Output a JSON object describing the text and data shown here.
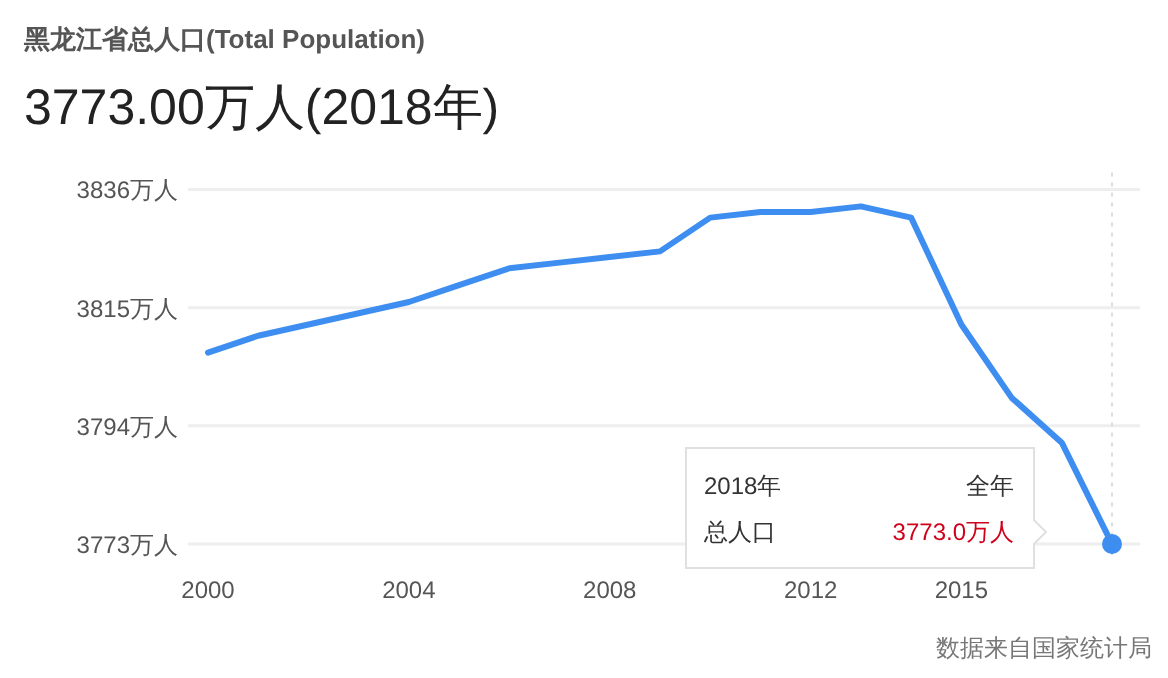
{
  "chart_data": {
    "type": "line",
    "title": "黑龙江省总人口(Total Population)",
    "subtitle": "3773.00万人(2018年)",
    "x": [
      2000,
      2001,
      2002,
      2003,
      2004,
      2005,
      2006,
      2007,
      2008,
      2009,
      2010,
      2011,
      2012,
      2013,
      2014,
      2015,
      2016,
      2017,
      2018
    ],
    "series": [
      {
        "color": "#3d8ef0",
        "values": [
          3807,
          3810,
          3812,
          3814,
          3816,
          3819,
          3822,
          3823,
          3824,
          3825,
          3831,
          3832,
          3832,
          3833,
          3831,
          3812,
          3799,
          3791,
          3773
        ]
      }
    ],
    "xlim": [
      2000,
      2018
    ],
    "xticks": [
      2000,
      2004,
      2008,
      2012,
      2015
    ],
    "ylim": [
      3771,
      3839
    ],
    "yticks": [
      {
        "value": 3773,
        "label": "3773万人"
      },
      {
        "value": 3794,
        "label": "3794万人"
      },
      {
        "value": 3815,
        "label": "3815万人"
      },
      {
        "value": 3836,
        "label": "3836万人"
      }
    ],
    "grid": "y",
    "marker": "none",
    "line_style": "solid",
    "ref_lines": [
      {
        "axis": "x",
        "value": 2018,
        "color": "#dddddd",
        "line_style": "dotted"
      }
    ],
    "annotations": [
      "2018年",
      "全年",
      "总人口",
      "3773.0万人",
      "数据来自国家统计局"
    ]
  }
}
